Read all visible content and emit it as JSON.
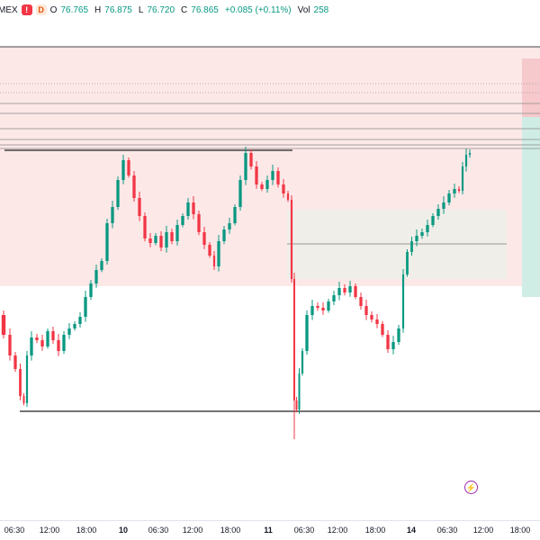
{
  "header": {
    "symbol_suffix": "MEX",
    "flag": "!",
    "badge": "D",
    "open_label": "O",
    "open_value": "76.765",
    "high_label": "H",
    "high_value": "76.875",
    "low_label": "L",
    "low_value": "76.720",
    "close_label": "C",
    "close_value": "76.865",
    "change": "+0.085 (+0.11%)",
    "vol_label": "Vol",
    "vol_value": "258"
  },
  "xaxis": {
    "ticks": [
      {
        "label": "06:30",
        "bold": false
      },
      {
        "label": "12:00",
        "bold": false
      },
      {
        "label": "18:00",
        "bold": false
      },
      {
        "label": "10",
        "bold": true
      },
      {
        "label": "06:30",
        "bold": false
      },
      {
        "label": "12:00",
        "bold": false
      },
      {
        "label": "18:00",
        "bold": false
      },
      {
        "label": "11",
        "bold": true
      },
      {
        "label": "06:30",
        "bold": false
      },
      {
        "label": "12:00",
        "bold": false
      },
      {
        "label": "18:00",
        "bold": false
      },
      {
        "label": "14",
        "bold": true
      },
      {
        "label": "06:30",
        "bold": false
      },
      {
        "label": "12:00",
        "bold": false
      },
      {
        "label": "18:00",
        "bold": false
      }
    ]
  },
  "alert_icon": "lightning-icon",
  "colors": {
    "up": "#089981",
    "down": "#f23645",
    "supply_zone": "#fde8e8",
    "consolidation_box": "#efeee8",
    "position_stop": "#f6c9cc",
    "position_target": "#cfece5"
  }
}
